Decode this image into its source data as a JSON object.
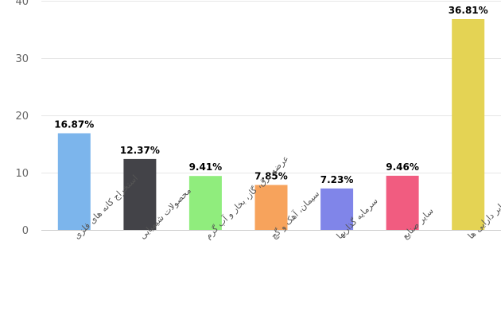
{
  "chart_data": {
    "type": "bar",
    "title": "",
    "xlabel": "",
    "ylabel": "",
    "ylim": [
      0,
      40
    ],
    "yticks": [
      0,
      10,
      20,
      30,
      40
    ],
    "grid": true,
    "categories": [
      "استخراج کانه های فلزی",
      "محصولات شیمیایی",
      "عرضه برق، گاز، بخار و آب گرم",
      "سیمان، آهک و گچ",
      "سرمایه گذاریها",
      "سایر صنایع",
      "سایر دارایی ها"
    ],
    "values": [
      16.87,
      12.37,
      9.41,
      7.85,
      7.23,
      9.46,
      36.81
    ],
    "data_labels": [
      "16.87%",
      "12.37%",
      "9.41%",
      "7.85%",
      "7.23%",
      "9.46%",
      "36.81%"
    ],
    "colors": [
      "#7cb5ec",
      "#434348",
      "#90ed7d",
      "#f7a35c",
      "#8085e9",
      "#f15c80",
      "#e4d354"
    ]
  }
}
